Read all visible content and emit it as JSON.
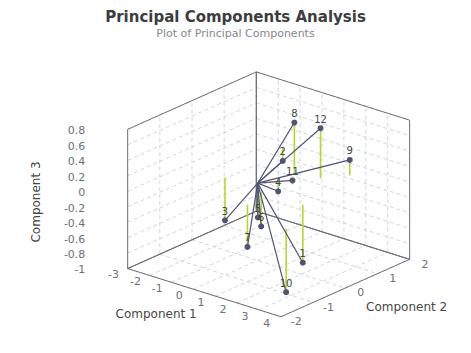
{
  "chart_data": {
    "type": "scatter3d",
    "title": "Principal Components Analysis",
    "subtitle": "Plot of Principal Components",
    "xlabel": "Component 1",
    "ylabel": "Component 2",
    "zlabel": "Component 3",
    "x": [
      2.5,
      -1.5,
      -1.2,
      0.2,
      0.3,
      0.6,
      1.0,
      0.5,
      2.0,
      3.5,
      1.0,
      1.4
    ],
    "y": [
      -0.3,
      1.8,
      -0.2,
      0.5,
      -0.2,
      -0.3,
      -1.0,
      0.8,
      1.5,
      -1.5,
      0.4,
      1.0
    ],
    "z": [
      -0.75,
      -0.18,
      -0.55,
      -0.18,
      -0.38,
      -0.45,
      -0.55,
      0.68,
      0.2,
      -0.82,
      0.05,
      0.65
    ],
    "labels": [
      "1",
      "2",
      "3",
      "4",
      "5",
      "6",
      "7",
      "8",
      "9",
      "10",
      "11",
      "12"
    ],
    "xlim": [
      -3,
      4
    ],
    "ylim": [
      -2,
      2
    ],
    "zlim": [
      -1,
      0.8
    ],
    "xticks": [
      -3,
      -2,
      -1,
      0,
      1,
      2,
      3,
      4
    ],
    "yticks": [
      -2,
      -1,
      0,
      1,
      2
    ],
    "zticks": [
      -1,
      -0.8,
      -0.6,
      -0.4,
      -0.2,
      0,
      0.2,
      0.4,
      0.6,
      0.8
    ],
    "grid": true
  }
}
